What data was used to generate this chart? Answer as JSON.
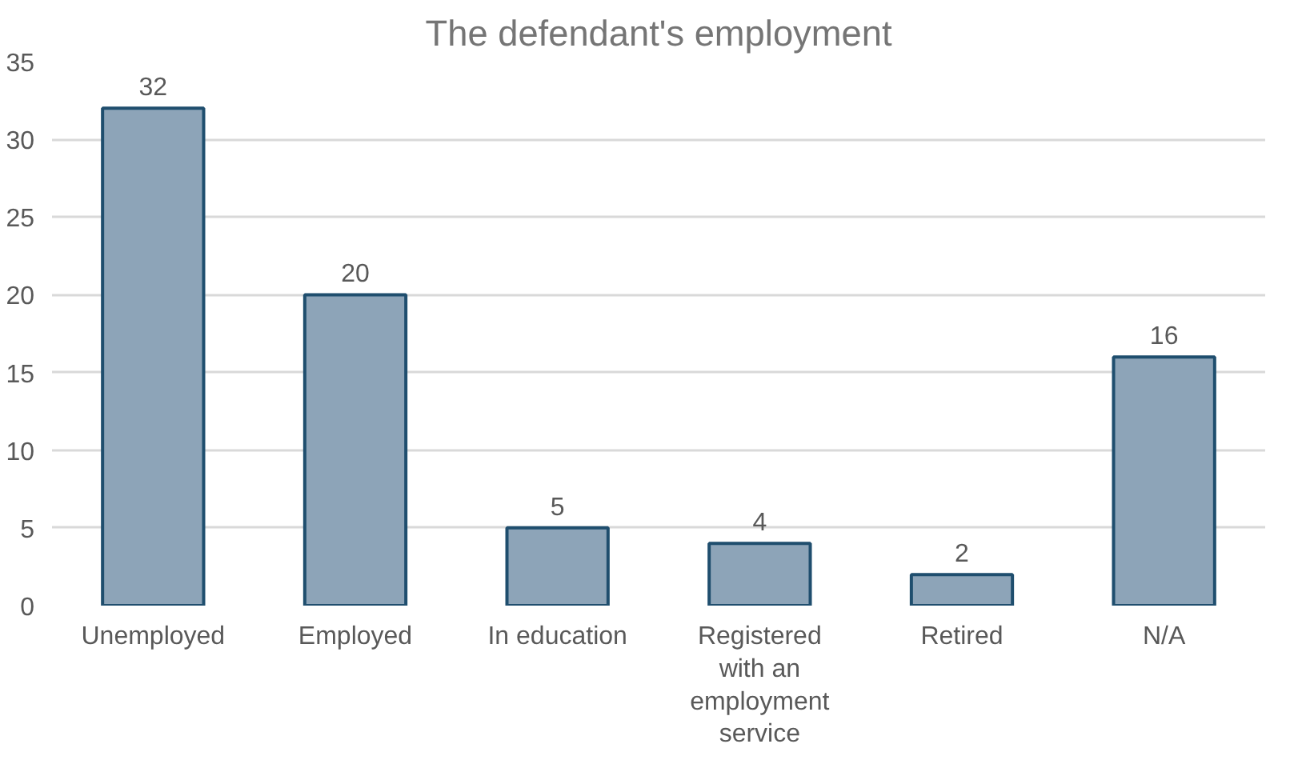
{
  "chart_data": {
    "type": "bar",
    "title": "The defendant's employment",
    "categories": [
      "Unemployed",
      "Employed",
      "In education",
      "Registered with an employment service",
      "Retired",
      "N/A"
    ],
    "values": [
      32,
      20,
      5,
      4,
      2,
      16
    ],
    "color": "#8da4b8",
    "ylim": [
      0,
      35
    ],
    "yticks": [
      0,
      5,
      10,
      15,
      20,
      25,
      30,
      35
    ],
    "grid": "y",
    "data_labels": true
  }
}
